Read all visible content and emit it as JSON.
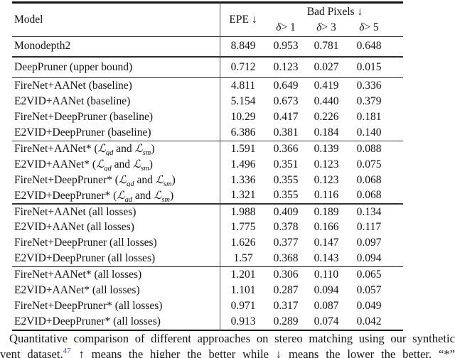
{
  "table": {
    "header": {
      "model": "Model",
      "epe": "EPE ↓",
      "bad_pixels": "Bad Pixels ↓",
      "deltas": [
        {
          "sym": "δ",
          "rest": " > 1"
        },
        {
          "sym": "δ",
          "rest": " > 3"
        },
        {
          "sym": "δ",
          "rest": " > 5"
        }
      ]
    },
    "loss_math": {
      "open": "(",
      "script_l": "ℒ",
      "sub_gd": "gd",
      "conj": " and ",
      "sub_sm": "sm",
      "close": ")"
    },
    "sections": [
      {
        "rows": [
          {
            "model": "Monodepth2",
            "values": [
              "8.849",
              "0.953",
              "0.781",
              "0.648"
            ]
          }
        ]
      },
      {
        "rows": [
          {
            "model": "DeepPruner (upper bound)",
            "values": [
              "0.712",
              "0.123",
              "0.027",
              "0.015"
            ]
          }
        ]
      },
      {
        "rows": [
          {
            "model": "FireNet+AANet (baseline)",
            "values": [
              "4.811",
              "0.649",
              "0.419",
              "0.336"
            ]
          },
          {
            "model": "E2VID+AANet (baseline)",
            "values": [
              "5.154",
              "0.673",
              "0.440",
              "0.379"
            ]
          },
          {
            "model": "FireNet+DeepPruner (baseline)",
            "values": [
              "10.29",
              "0.417",
              "0.226",
              "0.181"
            ]
          },
          {
            "model": "E2VID+DeepPruner (baseline)",
            "values": [
              "6.386",
              "0.381",
              "0.184",
              "0.140"
            ]
          }
        ]
      },
      {
        "rows": [
          {
            "model": "FireNet+AANet*",
            "math_losses": true,
            "values": [
              "1.591",
              "0.366",
              "0.139",
              "0.088"
            ]
          },
          {
            "model": "E2VID+AANet*",
            "math_losses": true,
            "values": [
              "1.496",
              "0.351",
              "0.123",
              "0.075"
            ]
          },
          {
            "model": "FireNet+DeepPruner*",
            "math_losses": true,
            "values": [
              "1.336",
              "0.355",
              "0.123",
              "0.068"
            ]
          },
          {
            "model": "E2VID+DeepPruner*",
            "math_losses": true,
            "values": [
              "1.321",
              "0.355",
              "0.116",
              "0.068"
            ]
          }
        ]
      },
      {
        "rows": [
          {
            "model": "FireNet+AANet (all losses)",
            "values": [
              "1.988",
              "0.409",
              "0.189",
              "0.134"
            ]
          },
          {
            "model": "E2VID+AANet (all losses)",
            "values": [
              "1.775",
              "0.378",
              "0.166",
              "0.117"
            ]
          },
          {
            "model": "FireNet+DeepPruner (all losses)",
            "values": [
              "1.626",
              "0.377",
              "0.147",
              "0.097"
            ]
          },
          {
            "model": "E2VID+DeepPruner (all losses)",
            "values": [
              "1.57",
              "0.368",
              "0.143",
              "0.094"
            ]
          }
        ]
      },
      {
        "rows": [
          {
            "model": "FireNet+AANet* (all losses)",
            "values": [
              "1.201",
              "0.306",
              "0.110",
              "0.065"
            ]
          },
          {
            "model": "E2VID+AANet* (all losses)",
            "values": [
              "1.101",
              "0.287",
              "0.094",
              "0.057"
            ]
          },
          {
            "model": "FireNet+DeepPruner* (all losses)",
            "values": [
              "0.971",
              "0.317",
              "0.087",
              "0.049"
            ]
          },
          {
            "model": "E2VID+DeepPruner* (all losses)",
            "values": [
              "0.913",
              "0.289",
              "0.074",
              "0.042"
            ]
          }
        ]
      }
    ]
  },
  "caption": {
    "line1": "Quantitative comparison of different approaches on stereo matching using our synthetic",
    "line2_pre": "vent dataset.",
    "cite": "47",
    "line2_post": " ↑ means the higher the better while ↓ means the lower the better.  “*”",
    "cite_color": "#5353dc"
  }
}
